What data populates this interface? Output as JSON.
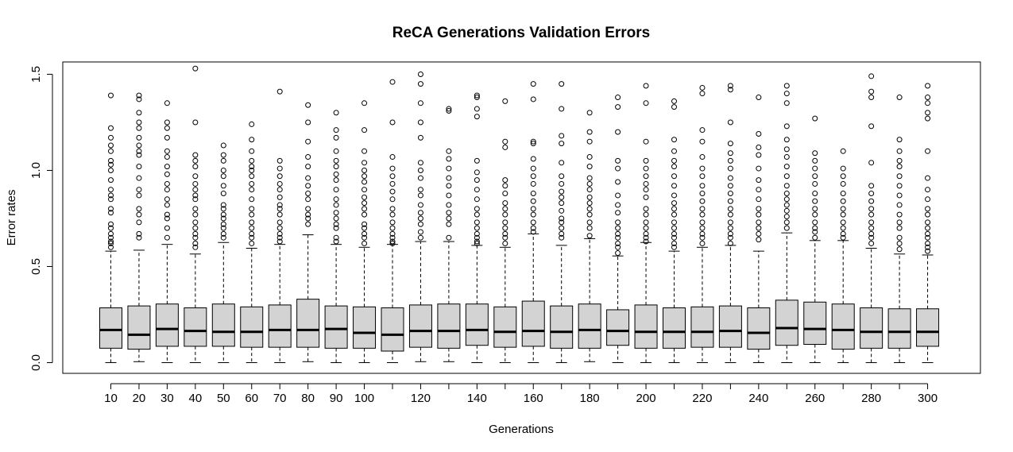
{
  "chart_data": {
    "type": "boxplot",
    "title": "ReCA Generations Validation Errors",
    "xlabel": "Generations",
    "ylabel": "Error rates",
    "ylim": [
      -0.05,
      1.55
    ],
    "yticks": [
      0.0,
      0.5,
      1.0,
      1.5
    ],
    "ytick_labels": [
      "0.0",
      "0.5",
      "1.0",
      "1.5"
    ],
    "categories": [
      "10",
      "20",
      "30",
      "40",
      "50",
      "60",
      "70",
      "80",
      "90",
      "100",
      "110",
      "120",
      "130",
      "140",
      "150",
      "160",
      "170",
      "180",
      "190",
      "200",
      "210",
      "220",
      "230",
      "240",
      "250",
      "260",
      "270",
      "280",
      "290",
      "300"
    ],
    "xtick_labels_shown": [
      "10",
      "20",
      "30",
      "40",
      "50",
      "60",
      "70",
      "80",
      "90",
      "100",
      "",
      "120",
      "",
      "140",
      "",
      "160",
      "",
      "180",
      "",
      "200",
      "",
      "220",
      "",
      "240",
      "",
      "260",
      "",
      "280",
      "",
      "300"
    ],
    "box_fill": "#d3d3d3",
    "boxes": [
      {
        "min": 0,
        "q1": 0.075,
        "median": 0.17,
        "q3": 0.285,
        "whisker_hi": 0.58,
        "outliers": [
          0.6,
          0.62,
          0.63,
          0.65,
          0.67,
          0.7,
          0.72,
          0.78,
          0.8,
          0.85,
          0.87,
          0.9,
          0.95,
          1.0,
          1.03,
          1.05,
          1.1,
          1.13,
          1.17,
          1.22,
          1.39
        ]
      },
      {
        "min": 0.005,
        "q1": 0.07,
        "median": 0.145,
        "q3": 0.295,
        "whisker_hi": 0.585,
        "outliers": [
          0.65,
          0.67,
          0.73,
          0.77,
          0.8,
          0.87,
          0.9,
          0.96,
          1.02,
          1.08,
          1.1,
          1.13,
          1.17,
          1.22,
          1.25,
          1.3,
          1.37,
          1.39
        ]
      },
      {
        "min": 0,
        "q1": 0.085,
        "median": 0.175,
        "q3": 0.305,
        "whisker_hi": 0.615,
        "outliers": [
          0.65,
          0.7,
          0.75,
          0.77,
          0.82,
          0.85,
          0.9,
          0.93,
          0.98,
          1.02,
          1.07,
          1.1,
          1.17,
          1.22,
          1.25,
          1.35
        ]
      },
      {
        "min": 0,
        "q1": 0.085,
        "median": 0.165,
        "q3": 0.285,
        "whisker_hi": 0.565,
        "outliers": [
          0.6,
          0.62,
          0.65,
          0.67,
          0.7,
          0.73,
          0.77,
          0.8,
          0.85,
          0.87,
          0.9,
          0.93,
          0.97,
          1.02,
          1.05,
          1.08,
          1.25,
          1.53
        ]
      },
      {
        "min": 0,
        "q1": 0.085,
        "median": 0.16,
        "q3": 0.305,
        "whisker_hi": 0.625,
        "outliers": [
          0.65,
          0.67,
          0.7,
          0.72,
          0.75,
          0.77,
          0.8,
          0.82,
          0.88,
          0.92,
          0.97,
          1.0,
          1.05,
          1.08,
          1.13
        ]
      },
      {
        "min": 0,
        "q1": 0.08,
        "median": 0.16,
        "q3": 0.29,
        "whisker_hi": 0.595,
        "outliers": [
          0.62,
          0.65,
          0.67,
          0.7,
          0.73,
          0.77,
          0.8,
          0.85,
          0.9,
          0.93,
          0.97,
          1.0,
          1.02,
          1.05,
          1.1,
          1.16,
          1.24
        ]
      },
      {
        "min": 0,
        "q1": 0.08,
        "median": 0.17,
        "q3": 0.3,
        "whisker_hi": 0.615,
        "outliers": [
          0.63,
          0.65,
          0.67,
          0.7,
          0.73,
          0.77,
          0.8,
          0.82,
          0.86,
          0.9,
          0.93,
          0.97,
          1.01,
          1.05,
          1.41
        ]
      },
      {
        "min": 0.005,
        "q1": 0.08,
        "median": 0.17,
        "q3": 0.33,
        "whisker_hi": 0.665,
        "outliers": [
          0.72,
          0.75,
          0.77,
          0.8,
          0.85,
          0.88,
          0.92,
          0.96,
          1.02,
          1.07,
          1.15,
          1.25,
          1.34
        ]
      },
      {
        "min": 0,
        "q1": 0.075,
        "median": 0.175,
        "q3": 0.295,
        "whisker_hi": 0.615,
        "outliers": [
          0.63,
          0.65,
          0.7,
          0.72,
          0.75,
          0.78,
          0.82,
          0.85,
          0.9,
          0.95,
          0.98,
          1.02,
          1.05,
          1.1,
          1.17,
          1.21,
          1.3
        ]
      },
      {
        "min": 0,
        "q1": 0.075,
        "median": 0.155,
        "q3": 0.29,
        "whisker_hi": 0.6,
        "outliers": [
          0.62,
          0.65,
          0.67,
          0.7,
          0.72,
          0.77,
          0.8,
          0.83,
          0.86,
          0.9,
          0.94,
          0.97,
          1.0,
          1.04,
          1.1,
          1.21,
          1.35
        ]
      },
      {
        "min": 0,
        "q1": 0.06,
        "median": 0.145,
        "q3": 0.285,
        "whisker_hi": 0.615,
        "outliers": [
          0.62,
          0.63,
          0.65,
          0.67,
          0.7,
          0.73,
          0.77,
          0.8,
          0.85,
          0.89,
          0.93,
          0.97,
          1.01,
          1.07,
          1.25,
          1.46
        ]
      },
      {
        "min": 0.005,
        "q1": 0.08,
        "median": 0.165,
        "q3": 0.3,
        "whisker_hi": 0.63,
        "outliers": [
          0.65,
          0.68,
          0.72,
          0.75,
          0.78,
          0.82,
          0.87,
          0.9,
          0.96,
          1.0,
          1.04,
          1.17,
          1.25,
          1.35,
          1.45,
          1.5
        ]
      },
      {
        "min": 0.005,
        "q1": 0.075,
        "median": 0.165,
        "q3": 0.305,
        "whisker_hi": 0.63,
        "outliers": [
          0.65,
          0.72,
          0.75,
          0.78,
          0.82,
          0.87,
          0.92,
          0.96,
          1.01,
          1.06,
          1.1,
          1.31,
          1.32
        ]
      },
      {
        "min": 0,
        "q1": 0.09,
        "median": 0.17,
        "q3": 0.305,
        "whisker_hi": 0.61,
        "outliers": [
          0.62,
          0.63,
          0.65,
          0.67,
          0.7,
          0.73,
          0.77,
          0.8,
          0.85,
          0.9,
          0.95,
          0.99,
          1.05,
          1.28,
          1.32,
          1.38,
          1.39
        ]
      },
      {
        "min": 0,
        "q1": 0.08,
        "median": 0.16,
        "q3": 0.29,
        "whisker_hi": 0.6,
        "outliers": [
          0.62,
          0.65,
          0.67,
          0.7,
          0.73,
          0.77,
          0.8,
          0.83,
          0.88,
          0.92,
          0.95,
          1.12,
          1.15,
          1.36
        ]
      },
      {
        "min": 0,
        "q1": 0.085,
        "median": 0.165,
        "q3": 0.32,
        "whisker_hi": 0.67,
        "outliers": [
          0.68,
          0.7,
          0.73,
          0.77,
          0.8,
          0.84,
          0.88,
          0.93,
          0.97,
          1.01,
          1.06,
          1.14,
          1.15,
          1.37,
          1.45
        ]
      },
      {
        "min": 0,
        "q1": 0.075,
        "median": 0.16,
        "q3": 0.295,
        "whisker_hi": 0.61,
        "outliers": [
          0.65,
          0.67,
          0.7,
          0.73,
          0.75,
          0.79,
          0.83,
          0.86,
          0.89,
          0.93,
          0.97,
          1.04,
          1.14,
          1.18,
          1.32,
          1.45
        ]
      },
      {
        "min": 0.005,
        "q1": 0.075,
        "median": 0.17,
        "q3": 0.305,
        "whisker_hi": 0.645,
        "outliers": [
          0.66,
          0.7,
          0.73,
          0.77,
          0.8,
          0.83,
          0.86,
          0.9,
          0.93,
          0.96,
          1.02,
          1.07,
          1.15,
          1.2,
          1.3
        ]
      },
      {
        "min": 0,
        "q1": 0.09,
        "median": 0.165,
        "q3": 0.275,
        "whisker_hi": 0.555,
        "outliers": [
          0.57,
          0.6,
          0.62,
          0.65,
          0.67,
          0.7,
          0.73,
          0.78,
          0.82,
          0.87,
          0.94,
          1.01,
          1.05,
          1.2,
          1.33,
          1.38
        ]
      },
      {
        "min": 0,
        "q1": 0.075,
        "median": 0.16,
        "q3": 0.3,
        "whisker_hi": 0.625,
        "outliers": [
          0.63,
          0.65,
          0.67,
          0.7,
          0.73,
          0.77,
          0.8,
          0.86,
          0.9,
          0.93,
          0.97,
          1.01,
          1.05,
          1.15,
          1.35,
          1.44
        ]
      },
      {
        "min": 0,
        "q1": 0.075,
        "median": 0.16,
        "q3": 0.285,
        "whisker_hi": 0.58,
        "outliers": [
          0.6,
          0.62,
          0.65,
          0.67,
          0.7,
          0.73,
          0.77,
          0.8,
          0.83,
          0.87,
          0.92,
          0.97,
          1.02,
          1.05,
          1.1,
          1.16,
          1.33,
          1.36
        ]
      },
      {
        "min": 0,
        "q1": 0.08,
        "median": 0.16,
        "q3": 0.29,
        "whisker_hi": 0.6,
        "outliers": [
          0.62,
          0.65,
          0.67,
          0.7,
          0.73,
          0.77,
          0.8,
          0.84,
          0.88,
          0.92,
          0.97,
          1.01,
          1.07,
          1.15,
          1.21,
          1.4,
          1.43
        ]
      },
      {
        "min": 0,
        "q1": 0.08,
        "median": 0.165,
        "q3": 0.295,
        "whisker_hi": 0.61,
        "outliers": [
          0.62,
          0.65,
          0.67,
          0.7,
          0.73,
          0.77,
          0.8,
          0.84,
          0.88,
          0.92,
          0.96,
          1.01,
          1.05,
          1.09,
          1.14,
          1.25,
          1.42,
          1.44
        ]
      },
      {
        "min": 0,
        "q1": 0.07,
        "median": 0.155,
        "q3": 0.285,
        "whisker_hi": 0.58,
        "outliers": [
          0.64,
          0.67,
          0.7,
          0.73,
          0.77,
          0.8,
          0.85,
          0.9,
          0.95,
          1.01,
          1.08,
          1.12,
          1.19,
          1.38
        ]
      },
      {
        "min": 0,
        "q1": 0.09,
        "median": 0.18,
        "q3": 0.325,
        "whisker_hi": 0.675,
        "outliers": [
          0.7,
          0.73,
          0.76,
          0.79,
          0.82,
          0.85,
          0.88,
          0.92,
          0.97,
          1.02,
          1.07,
          1.11,
          1.16,
          1.23,
          1.35,
          1.4,
          1.44
        ]
      },
      {
        "min": 0,
        "q1": 0.095,
        "median": 0.175,
        "q3": 0.315,
        "whisker_hi": 0.635,
        "outliers": [
          0.65,
          0.68,
          0.7,
          0.73,
          0.77,
          0.8,
          0.84,
          0.88,
          0.93,
          0.97,
          1.01,
          1.05,
          1.09,
          1.27
        ]
      },
      {
        "min": 0,
        "q1": 0.07,
        "median": 0.17,
        "q3": 0.305,
        "whisker_hi": 0.635,
        "outliers": [
          0.65,
          0.67,
          0.7,
          0.73,
          0.77,
          0.8,
          0.84,
          0.88,
          0.93,
          0.97,
          1.01,
          1.1
        ]
      },
      {
        "min": 0,
        "q1": 0.075,
        "median": 0.16,
        "q3": 0.285,
        "whisker_hi": 0.595,
        "outliers": [
          0.62,
          0.65,
          0.67,
          0.7,
          0.73,
          0.77,
          0.8,
          0.84,
          0.88,
          0.92,
          1.04,
          1.23,
          1.38,
          1.41,
          1.49
        ]
      },
      {
        "min": 0,
        "q1": 0.075,
        "median": 0.16,
        "q3": 0.28,
        "whisker_hi": 0.565,
        "outliers": [
          0.59,
          0.62,
          0.65,
          0.7,
          0.73,
          0.77,
          0.82,
          0.87,
          0.92,
          0.97,
          1.02,
          1.05,
          1.1,
          1.16,
          1.38
        ]
      },
      {
        "min": 0,
        "q1": 0.085,
        "median": 0.16,
        "q3": 0.28,
        "whisker_hi": 0.56,
        "outliers": [
          0.58,
          0.6,
          0.62,
          0.65,
          0.67,
          0.7,
          0.73,
          0.77,
          0.8,
          0.85,
          0.9,
          0.96,
          1.1,
          1.27,
          1.3,
          1.35,
          1.38,
          1.44
        ]
      }
    ]
  }
}
